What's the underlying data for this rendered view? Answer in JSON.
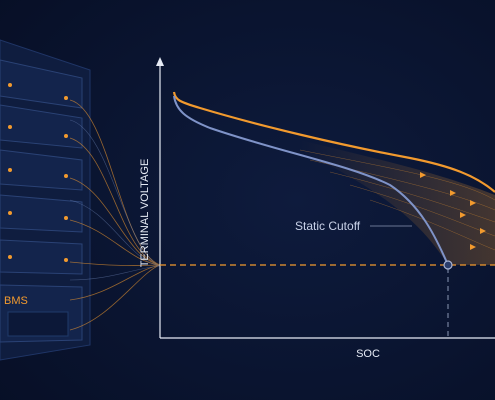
{
  "labels": {
    "y_axis": "TERMINAL VOLTAGE",
    "x_axis": "SOC",
    "annotation": "Static Cutoff",
    "bms": "BMS"
  }
}
